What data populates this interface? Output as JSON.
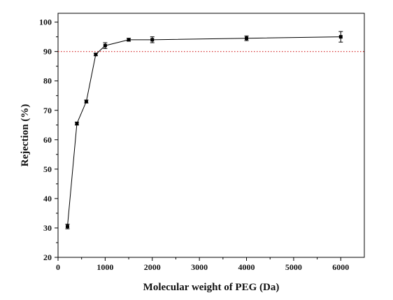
{
  "chart_data": {
    "type": "line",
    "title": "",
    "xlabel": "Molecular weight of PEG (Da)",
    "ylabel": "Rejection (%)",
    "xlim": [
      0,
      6500
    ],
    "ylim": [
      20,
      103
    ],
    "x_ticks": [
      0,
      1000,
      2000,
      3000,
      4000,
      5000,
      6000
    ],
    "y_ticks": [
      20,
      30,
      40,
      50,
      60,
      70,
      80,
      90,
      100
    ],
    "x_tick_labels": [
      "0",
      "1000",
      "2000",
      "3000",
      "4000",
      "5000",
      "6000"
    ],
    "y_tick_labels": [
      "20",
      "30",
      "40",
      "50",
      "60",
      "70",
      "80",
      "90",
      "100"
    ],
    "grid": false,
    "legend": "none",
    "series": [
      {
        "x": [
          200,
          400,
          600,
          800,
          1000,
          1500,
          2000,
          4000,
          6000
        ],
        "y": [
          30.5,
          65.5,
          73,
          89,
          92,
          94,
          94,
          94.5,
          95
        ],
        "error": [
          0.8,
          0.5,
          0.5,
          0.4,
          1.0,
          0.5,
          1.0,
          0.8,
          1.8
        ],
        "color": "#000000",
        "marker": "square"
      }
    ],
    "reference_lines": [
      {
        "orientation": "horizontal",
        "y": 90,
        "style": "dotted",
        "color": "#d42020"
      }
    ]
  }
}
